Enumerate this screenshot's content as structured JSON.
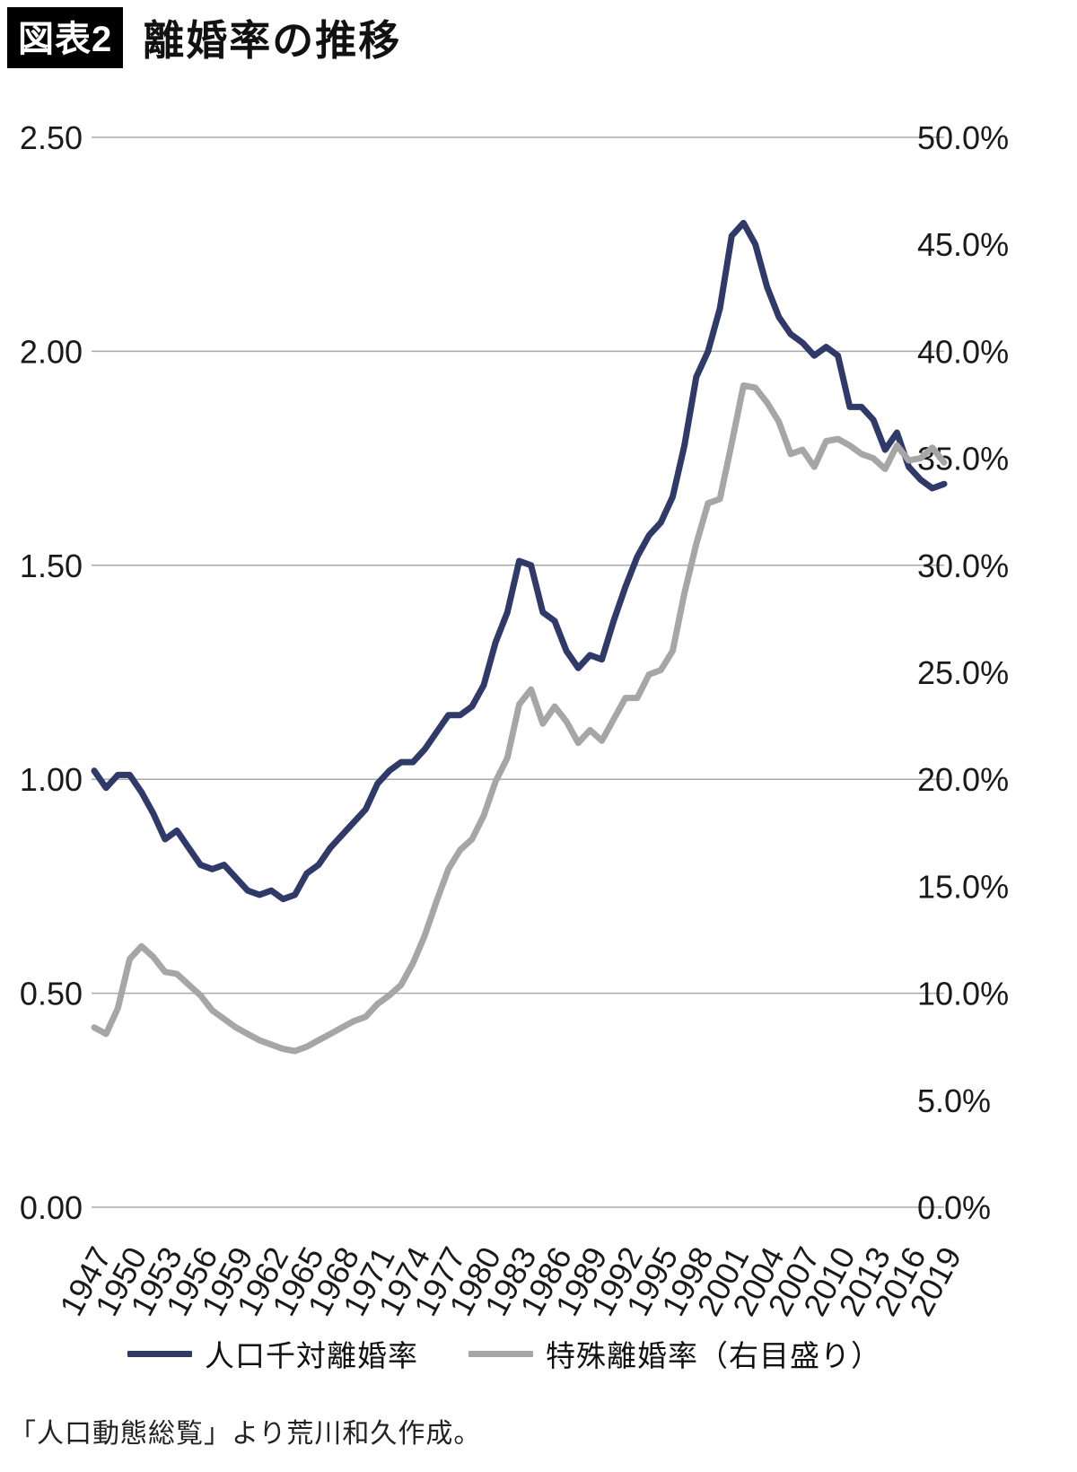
{
  "header": {
    "tag": "図表2",
    "title": "離婚率の推移"
  },
  "legend": [
    {
      "label": "人口千対離婚率",
      "color": "#2f3a68"
    },
    {
      "label": "特殊離婚率（右目盛り）",
      "color": "#a6a6a6"
    }
  ],
  "source": "「人口動態総覧」より荒川和久作成。",
  "chart_data": {
    "type": "line",
    "title": "離婚率の推移",
    "grid": true,
    "legend_position": "bottom",
    "x_start": 1947,
    "x_end": 2019,
    "x_tick_labels": [
      "1947",
      "1950",
      "1953",
      "1956",
      "1959",
      "1962",
      "1965",
      "1968",
      "1971",
      "1974",
      "1977",
      "1980",
      "1983",
      "1986",
      "1989",
      "1992",
      "1995",
      "1998",
      "2001",
      "2004",
      "2007",
      "2010",
      "2013",
      "2016",
      "2019"
    ],
    "left_axis": {
      "min": 0,
      "max": 2.5,
      "ticks": [
        "2.50",
        "2.00",
        "1.50",
        "1.00",
        "0.50",
        "0.00"
      ]
    },
    "right_axis": {
      "min": 0,
      "max": 50,
      "ticks": [
        "50.0%",
        "45.0%",
        "40.0%",
        "35.0%",
        "30.0%",
        "25.0%",
        "20.0%",
        "15.0%",
        "10.0%",
        "5.0%",
        "0.0%"
      ]
    },
    "series": [
      {
        "name": "人口千対離婚率",
        "axis": "left",
        "color": "#2f3a68",
        "values": [
          1.02,
          0.98,
          1.01,
          1.01,
          0.97,
          0.92,
          0.86,
          0.88,
          0.84,
          0.8,
          0.79,
          0.8,
          0.77,
          0.74,
          0.73,
          0.74,
          0.72,
          0.73,
          0.78,
          0.8,
          0.84,
          0.87,
          0.9,
          0.93,
          0.99,
          1.02,
          1.04,
          1.04,
          1.07,
          1.11,
          1.15,
          1.15,
          1.17,
          1.22,
          1.32,
          1.39,
          1.51,
          1.5,
          1.39,
          1.37,
          1.3,
          1.26,
          1.29,
          1.28,
          1.37,
          1.45,
          1.52,
          1.57,
          1.6,
          1.66,
          1.78,
          1.94,
          2.0,
          2.1,
          2.27,
          2.3,
          2.25,
          2.15,
          2.08,
          2.04,
          2.02,
          1.99,
          2.01,
          1.99,
          1.87,
          1.87,
          1.84,
          1.77,
          1.81,
          1.73,
          1.7,
          1.68,
          1.69
        ]
      },
      {
        "name": "特殊離婚率（右目盛り）",
        "axis": "right",
        "color": "#a6a6a6",
        "values": [
          8.4,
          8.1,
          9.3,
          11.6,
          12.2,
          11.7,
          11.0,
          10.9,
          10.4,
          9.9,
          9.2,
          8.8,
          8.4,
          8.1,
          7.8,
          7.6,
          7.4,
          7.3,
          7.5,
          7.8,
          8.1,
          8.4,
          8.7,
          8.9,
          9.5,
          9.9,
          10.4,
          11.4,
          12.7,
          14.3,
          15.8,
          16.7,
          17.2,
          18.3,
          19.9,
          21.0,
          23.5,
          24.2,
          22.6,
          23.4,
          22.7,
          21.7,
          22.3,
          21.8,
          22.8,
          23.8,
          23.8,
          24.9,
          25.1,
          26.0,
          28.7,
          31.0,
          32.9,
          33.1,
          35.7,
          38.4,
          38.3,
          37.6,
          36.7,
          35.2,
          35.4,
          34.6,
          35.8,
          35.9,
          35.6,
          35.2,
          35.0,
          34.5,
          35.6,
          34.9,
          35.0,
          35.5,
          34.8
        ]
      }
    ]
  }
}
